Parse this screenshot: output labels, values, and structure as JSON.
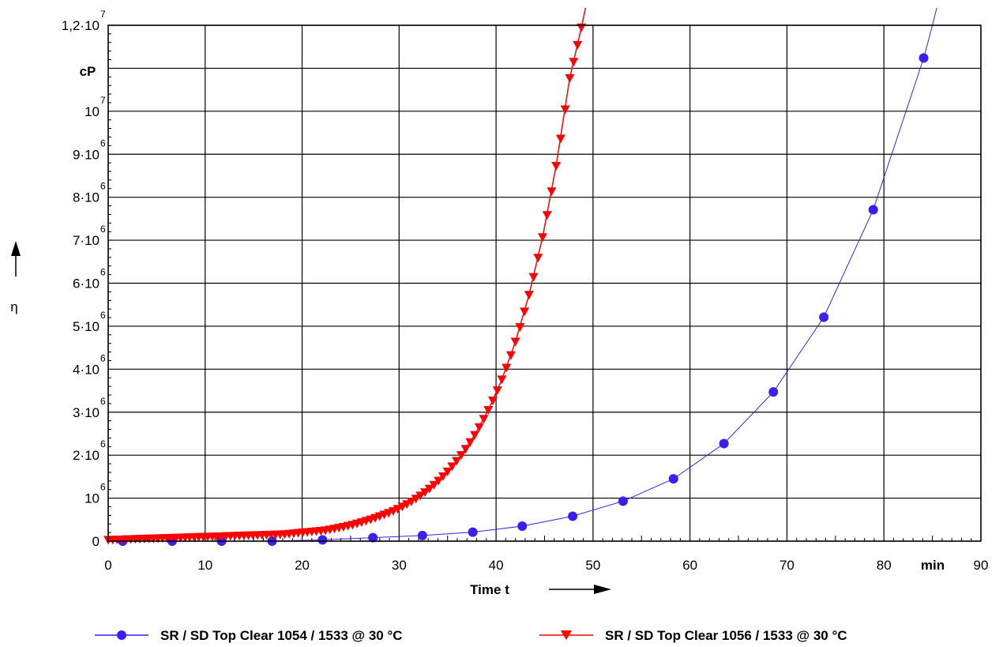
{
  "chart_data": {
    "type": "scatter",
    "xlabel": "Time t",
    "xunit": "min",
    "ylabel": "η",
    "yunit": "cP",
    "xlim": [
      0,
      90
    ],
    "ylim": [
      0,
      12000000
    ],
    "grid": true,
    "legend_position": "bottom",
    "x_ticks": [
      {
        "value": 0,
        "label": "0"
      },
      {
        "value": 10,
        "label": "10"
      },
      {
        "value": 20,
        "label": "20"
      },
      {
        "value": 30,
        "label": "30"
      },
      {
        "value": 40,
        "label": "40"
      },
      {
        "value": 50,
        "label": "50"
      },
      {
        "value": 60,
        "label": "60"
      },
      {
        "value": 70,
        "label": "70"
      },
      {
        "value": 80,
        "label": "80"
      },
      {
        "value": 90,
        "label": "90"
      }
    ],
    "y_ticks": [
      {
        "value": 0,
        "mant": "0",
        "exp": ""
      },
      {
        "value": 1000000,
        "mant": "10",
        "exp": "6"
      },
      {
        "value": 2000000,
        "mant": "2·10",
        "exp": "6"
      },
      {
        "value": 3000000,
        "mant": "3·10",
        "exp": "6"
      },
      {
        "value": 4000000,
        "mant": "4·10",
        "exp": "6"
      },
      {
        "value": 5000000,
        "mant": "5·10",
        "exp": "6"
      },
      {
        "value": 6000000,
        "mant": "6·10",
        "exp": "6"
      },
      {
        "value": 7000000,
        "mant": "7·10",
        "exp": "6"
      },
      {
        "value": 8000000,
        "mant": "8·10",
        "exp": "6"
      },
      {
        "value": 9000000,
        "mant": "9·10",
        "exp": "6"
      },
      {
        "value": 10000000,
        "mant": "10",
        "exp": "7"
      },
      {
        "value": 12000000,
        "mant": "1,2·10",
        "exp": "7"
      }
    ],
    "series": [
      {
        "name": "SR / SD Top Clear  1054 / 1533  @  30 °C",
        "color": "#3b1ff0",
        "marker": "circle",
        "x": [
          1.5,
          6.6,
          11.7,
          16.9,
          22.1,
          27.3,
          32.4,
          37.6,
          42.7,
          47.9,
          53.1,
          58.3,
          63.5,
          68.6,
          73.8,
          78.9,
          84.1
        ],
        "y": [
          0,
          0,
          0,
          0,
          30000,
          80000,
          130000,
          210000,
          350000,
          580000,
          930000,
          1450000,
          2270000,
          3470000,
          5210000,
          7710000,
          11240000
        ]
      },
      {
        "name": "SR / SD Top Clear  1056 / 1533  @  30 °C",
        "color": "#ff0000",
        "marker": "triangle-down",
        "x": [
          0,
          1.4,
          2.8,
          4.2,
          5.6,
          7,
          8.4,
          9.8,
          11.2,
          12.6,
          14,
          15.4,
          16.8,
          18.2,
          19.6,
          21,
          22.4,
          23.8,
          25.2,
          26.6,
          28,
          29.4,
          30.8,
          32.2,
          33.6,
          35,
          36.4,
          37.8,
          39.2,
          40.6,
          42,
          43.4,
          44.8,
          46.2,
          47.6,
          48.8
        ],
        "y": [
          30000,
          40000,
          50000,
          60000,
          70000,
          80000,
          90000,
          100000,
          110000,
          120000,
          130000,
          140000,
          150000,
          160000,
          190000,
          220000,
          250000,
          310000,
          380000,
          470000,
          580000,
          700000,
          860000,
          1060000,
          1310000,
          1620000,
          2000000,
          2470000,
          3050000,
          3760000,
          4640000,
          5730000,
          7070000,
          8730000,
          10770000,
          11950000
        ]
      }
    ]
  }
}
